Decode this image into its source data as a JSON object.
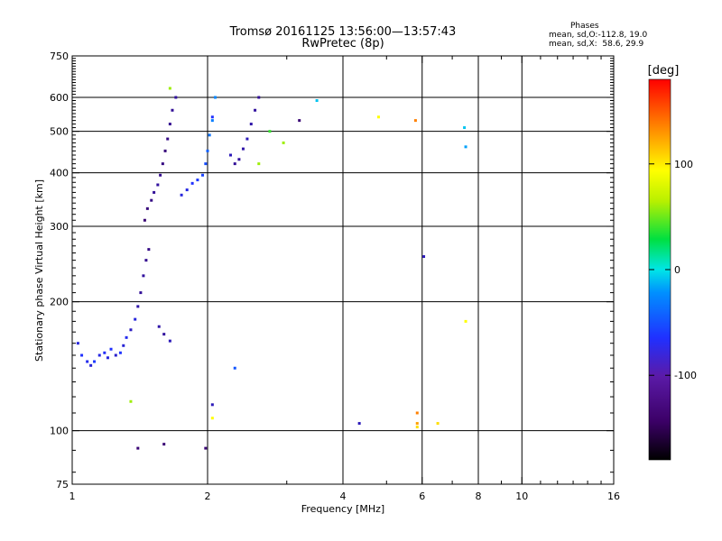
{
  "header": {
    "title": "Tromsø 20161125 13:56:00—13:57:43",
    "subtitle": "RwPretec (8p)",
    "phase_title": "Phases",
    "phase_line1": "mean, sd,O:-112.8, 19.0",
    "phase_line2": "mean, sd,X:  58.6, 29.9"
  },
  "chart_data": {
    "type": "scatter",
    "title": "Tromsø 20161125 13:56:00—13:57:43",
    "subtitle": "RwPretec (8p)",
    "xlabel": "Frequency [MHz]",
    "ylabel": "Stationary phase Virtual Height [km]",
    "x_scale": "log",
    "y_scale": "log",
    "xlim": [
      1,
      16
    ],
    "ylim": [
      75,
      750
    ],
    "x_ticks": [
      1,
      2,
      4,
      6,
      8,
      10,
      16
    ],
    "x_tick_labels": [
      "1",
      "2",
      "4",
      "6",
      "8",
      "10",
      "16"
    ],
    "y_ticks": [
      75,
      100,
      200,
      300,
      400,
      500,
      600,
      750
    ],
    "y_tick_labels": [
      "75",
      "100",
      "200",
      "300",
      "400",
      "500",
      "600",
      "750"
    ],
    "x_gridlines": [
      2,
      4,
      6,
      8,
      10
    ],
    "y_gridlines": [
      100,
      200,
      300,
      400,
      500,
      600
    ],
    "colorbar": {
      "label": "[deg]",
      "range": [
        -180,
        180
      ],
      "ticks": [
        100,
        0,
        -100
      ],
      "tick_labels": [
        "100",
        "0",
        "-100"
      ]
    },
    "series": [
      {
        "values": [
          [
            1.03,
            160,
            -110
          ],
          [
            1.05,
            150,
            -100
          ],
          [
            1.08,
            145,
            -105
          ],
          [
            1.1,
            142,
            -112
          ],
          [
            1.12,
            145,
            -95
          ],
          [
            1.15,
            150,
            -108
          ],
          [
            1.18,
            152,
            -102
          ],
          [
            1.2,
            148,
            -110
          ],
          [
            1.22,
            155,
            -100
          ],
          [
            1.25,
            150,
            -115
          ],
          [
            1.28,
            152,
            -98
          ],
          [
            1.3,
            158,
            -112
          ],
          [
            1.32,
            165,
            -105
          ],
          [
            1.35,
            172,
            -118
          ],
          [
            1.38,
            182,
            -110
          ],
          [
            1.4,
            195,
            -125
          ],
          [
            1.42,
            210,
            -130
          ],
          [
            1.44,
            230,
            -128
          ],
          [
            1.46,
            250,
            -132
          ],
          [
            1.48,
            265,
            -135
          ],
          [
            1.45,
            310,
            -140
          ],
          [
            1.47,
            330,
            -138
          ],
          [
            1.5,
            345,
            -135
          ],
          [
            1.52,
            360,
            -130
          ],
          [
            1.55,
            375,
            -128
          ],
          [
            1.57,
            395,
            -132
          ],
          [
            1.59,
            420,
            -136
          ],
          [
            1.61,
            450,
            -138
          ],
          [
            1.63,
            480,
            -135
          ],
          [
            1.65,
            520,
            -132
          ],
          [
            1.67,
            560,
            -130
          ],
          [
            1.7,
            600,
            -128
          ],
          [
            1.56,
            175,
            -125
          ],
          [
            1.6,
            168,
            -128
          ],
          [
            1.65,
            162,
            -120
          ],
          [
            1.75,
            355,
            -110
          ],
          [
            1.8,
            365,
            -108
          ],
          [
            1.85,
            378,
            -100
          ],
          [
            1.9,
            385,
            -95
          ],
          [
            1.95,
            395,
            -90
          ],
          [
            1.98,
            420,
            -85
          ],
          [
            2.0,
            450,
            -75
          ],
          [
            2.02,
            490,
            -65
          ],
          [
            2.05,
            530,
            -60
          ],
          [
            2.08,
            600,
            -55
          ],
          [
            2.25,
            440,
            -120
          ],
          [
            2.3,
            420,
            -130
          ],
          [
            2.35,
            430,
            -128
          ],
          [
            2.4,
            455,
            -125
          ],
          [
            2.45,
            480,
            -120
          ],
          [
            2.5,
            520,
            -125
          ],
          [
            2.55,
            560,
            -128
          ],
          [
            2.6,
            600,
            -130
          ]
        ]
      }
    ],
    "scattered_points": [
      [
        1.65,
        630,
        60
      ],
      [
        2.05,
        540,
        -100
      ],
      [
        2.6,
        420,
        60
      ],
      [
        2.75,
        500,
        40
      ],
      [
        2.95,
        470,
        60
      ],
      [
        3.2,
        530,
        -140
      ],
      [
        3.5,
        590,
        -20
      ],
      [
        4.8,
        540,
        100
      ],
      [
        5.8,
        530,
        140
      ],
      [
        7.45,
        510,
        -20
      ],
      [
        7.5,
        460,
        -40
      ],
      [
        6.05,
        255,
        -120
      ],
      [
        7.5,
        180,
        100
      ],
      [
        2.05,
        115,
        -120
      ],
      [
        2.05,
        107,
        100
      ],
      [
        2.3,
        140,
        -80
      ],
      [
        4.35,
        104,
        -120
      ],
      [
        5.85,
        110,
        140
      ],
      [
        5.85,
        104,
        130
      ],
      [
        5.85,
        102,
        110
      ],
      [
        6.5,
        104,
        110
      ],
      [
        1.35,
        117,
        60
      ],
      [
        1.4,
        91,
        -140
      ],
      [
        1.6,
        93,
        -140
      ],
      [
        1.98,
        91,
        -140
      ]
    ]
  }
}
